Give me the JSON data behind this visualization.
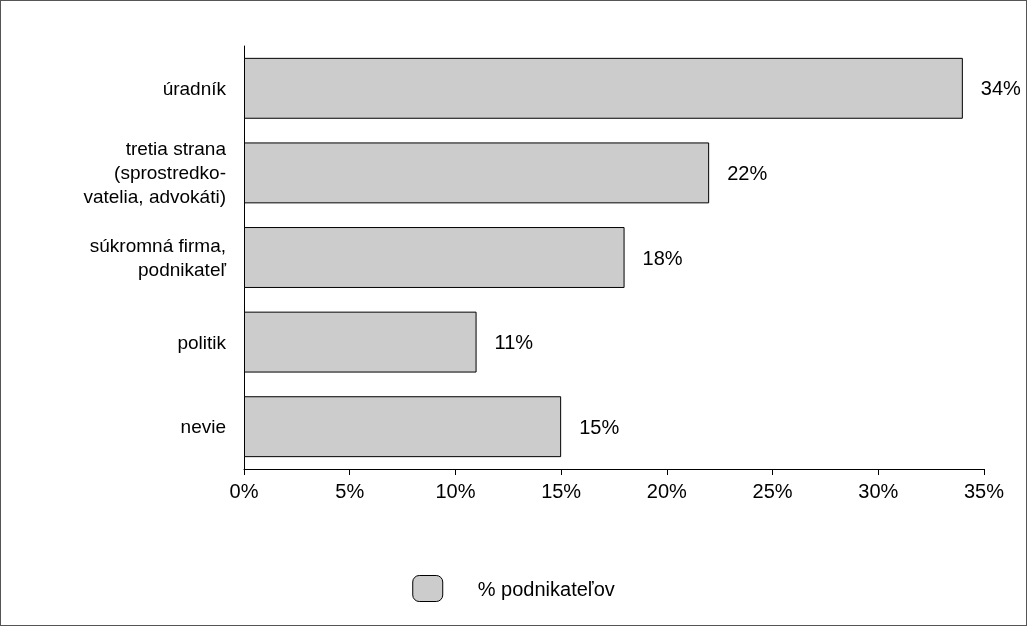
{
  "chart_data": {
    "type": "bar",
    "orientation": "horizontal",
    "categories": [
      "úradník",
      "tretia strana\n(sprostredko-\nvatelia, advokáti)",
      "súkromná firma,\npodnikateľ",
      "politik",
      "nevie"
    ],
    "series": [
      {
        "name": "% podnikateľov",
        "color": "#cccccc",
        "values": [
          34,
          22,
          18,
          11,
          15
        ],
        "value_labels": [
          "34%",
          "22%",
          "18%",
          "11%",
          "15%"
        ]
      }
    ],
    "xlim": [
      0,
      35
    ],
    "xticks": [
      {
        "value": 0,
        "label": "0%"
      },
      {
        "value": 5,
        "label": "5%"
      },
      {
        "value": 10,
        "label": "10%"
      },
      {
        "value": 15,
        "label": "15%"
      },
      {
        "value": 20,
        "label": "20%"
      },
      {
        "value": 25,
        "label": "25%"
      },
      {
        "value": 30,
        "label": "30%"
      },
      {
        "value": 35,
        "label": "35%"
      }
    ],
    "grid": false,
    "legend": "bottom"
  }
}
